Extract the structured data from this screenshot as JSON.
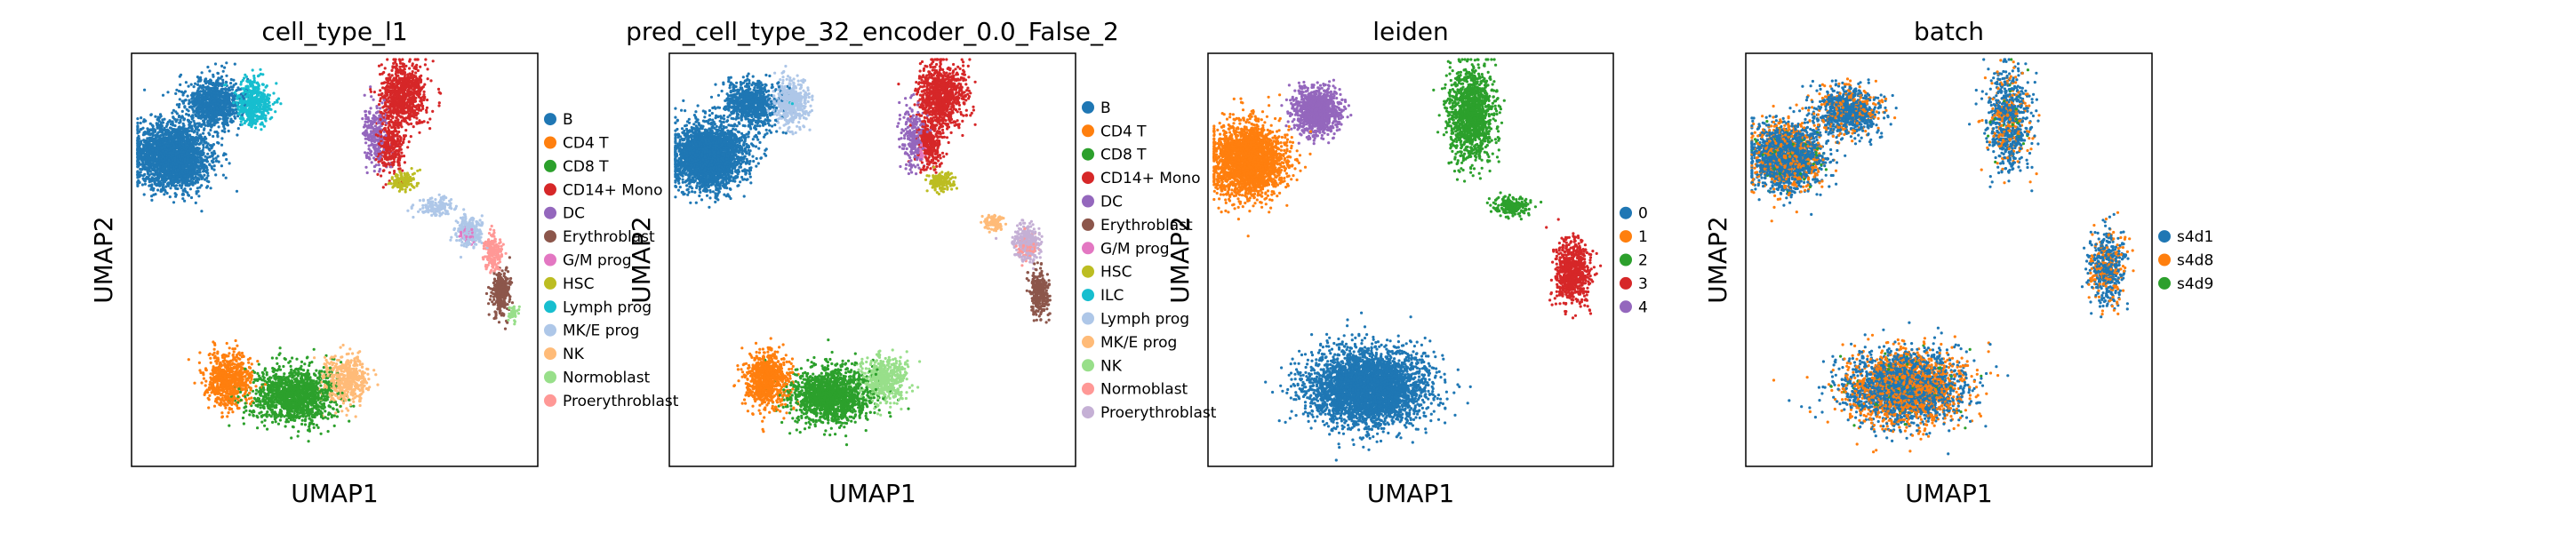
{
  "chart_data": [
    {
      "type": "scatter",
      "title": "cell_type_l1",
      "xlabel": "UMAP1",
      "ylabel": "UMAP2",
      "legend": "right",
      "series": [
        {
          "name": "B",
          "color": "#1f77b4",
          "clusters": [
            [
              0.1,
              0.25,
              0.08,
              0.07,
              2600
            ],
            [
              0.2,
              0.12,
              0.06,
              0.05,
              900
            ]
          ]
        },
        {
          "name": "CD4 T",
          "color": "#ff7f0e",
          "clusters": [
            [
              0.24,
              0.79,
              0.05,
              0.06,
              700
            ]
          ]
        },
        {
          "name": "CD8 T",
          "color": "#2ca02c",
          "clusters": [
            [
              0.4,
              0.83,
              0.09,
              0.06,
              1400
            ]
          ]
        },
        {
          "name": "CD14+ Mono",
          "color": "#d62728",
          "clusters": [
            [
              0.67,
              0.1,
              0.05,
              0.07,
              800
            ],
            [
              0.64,
              0.22,
              0.03,
              0.06,
              300
            ]
          ]
        },
        {
          "name": "DC",
          "color": "#9467bd",
          "clusters": [
            [
              0.6,
              0.2,
              0.025,
              0.07,
              250
            ]
          ]
        },
        {
          "name": "Erythroblast",
          "color": "#8c564b",
          "clusters": [
            [
              0.91,
              0.58,
              0.02,
              0.05,
              300
            ]
          ]
        },
        {
          "name": "G/M prog",
          "color": "#e377c2",
          "clusters": [
            [
              0.83,
              0.44,
              0.015,
              0.015,
              60
            ]
          ]
        },
        {
          "name": "HSC",
          "color": "#bcbd22",
          "clusters": [
            [
              0.67,
              0.31,
              0.03,
              0.02,
              150
            ]
          ]
        },
        {
          "name": "Lymph prog",
          "color": "#17becf",
          "clusters": [
            [
              0.3,
              0.12,
              0.04,
              0.05,
              500
            ]
          ]
        },
        {
          "name": "MK/E prog",
          "color": "#aec7e8",
          "clusters": [
            [
              0.83,
              0.43,
              0.03,
              0.03,
              250
            ],
            [
              0.75,
              0.37,
              0.04,
              0.02,
              150
            ]
          ]
        },
        {
          "name": "NK",
          "color": "#ffbb78",
          "clusters": [
            [
              0.53,
              0.79,
              0.05,
              0.05,
              500
            ]
          ]
        },
        {
          "name": "Normoblast",
          "color": "#98df8a",
          "clusters": [
            [
              0.94,
              0.63,
              0.012,
              0.02,
              40
            ]
          ]
        },
        {
          "name": "Proerythroblast",
          "color": "#ff9896",
          "clusters": [
            [
              0.89,
              0.48,
              0.02,
              0.04,
              200
            ]
          ]
        }
      ]
    },
    {
      "type": "scatter",
      "title": "pred_cell_type_32_encoder_0.0_False_2",
      "xlabel": "UMAP1",
      "ylabel": "UMAP2",
      "legend": "right",
      "series": [
        {
          "name": "B",
          "color": "#1f77b4",
          "clusters": [
            [
              0.1,
              0.25,
              0.08,
              0.07,
              2600
            ],
            [
              0.2,
              0.12,
              0.06,
              0.05,
              800
            ]
          ]
        },
        {
          "name": "CD4 T",
          "color": "#ff7f0e",
          "clusters": [
            [
              0.24,
              0.79,
              0.05,
              0.06,
              800
            ]
          ]
        },
        {
          "name": "CD8 T",
          "color": "#2ca02c",
          "clusters": [
            [
              0.4,
              0.83,
              0.09,
              0.06,
              1500
            ]
          ]
        },
        {
          "name": "CD14+ Mono",
          "color": "#d62728",
          "clusters": [
            [
              0.67,
              0.1,
              0.05,
              0.07,
              900
            ],
            [
              0.64,
              0.22,
              0.03,
              0.06,
              300
            ]
          ]
        },
        {
          "name": "DC",
          "color": "#9467bd",
          "clusters": [
            [
              0.6,
              0.2,
              0.025,
              0.07,
              250
            ]
          ]
        },
        {
          "name": "Erythroblast",
          "color": "#8c564b",
          "clusters": [
            [
              0.91,
              0.58,
              0.02,
              0.05,
              300
            ]
          ]
        },
        {
          "name": "G/M prog",
          "color": "#e377c2",
          "clusters": [
            [
              0.62,
              0.24,
              0.01,
              0.02,
              30
            ]
          ]
        },
        {
          "name": "HSC",
          "color": "#bcbd22",
          "clusters": [
            [
              0.67,
              0.31,
              0.03,
              0.02,
              150
            ]
          ]
        },
        {
          "name": "ILC",
          "color": "#17becf",
          "clusters": [
            [
              0.3,
              0.12,
              0.01,
              0.01,
              10
            ]
          ]
        },
        {
          "name": "Lymph prog",
          "color": "#aec7e8",
          "clusters": [
            [
              0.3,
              0.12,
              0.04,
              0.05,
              500
            ]
          ]
        },
        {
          "name": "MK/E prog",
          "color": "#ffbb78",
          "clusters": [
            [
              0.8,
              0.41,
              0.02,
              0.02,
              100
            ]
          ]
        },
        {
          "name": "NK",
          "color": "#98df8a",
          "clusters": [
            [
              0.53,
              0.79,
              0.05,
              0.05,
              500
            ]
          ]
        },
        {
          "name": "Normoblast",
          "color": "#ff9896",
          "clusters": [
            [
              0.88,
              0.47,
              0.02,
              0.03,
              100
            ]
          ]
        },
        {
          "name": "Proerythroblast",
          "color": "#c5b0d5",
          "clusters": [
            [
              0.88,
              0.46,
              0.03,
              0.04,
              300
            ]
          ]
        }
      ]
    },
    {
      "type": "scatter",
      "title": "leiden",
      "xlabel": "UMAP1",
      "ylabel": "UMAP2",
      "legend": "right",
      "series": [
        {
          "name": "0",
          "color": "#1f77b4",
          "clusters": [
            [
              0.39,
              0.81,
              0.13,
              0.08,
              3800
            ]
          ]
        },
        {
          "name": "1",
          "color": "#ff7f0e",
          "clusters": [
            [
              0.1,
              0.26,
              0.08,
              0.08,
              2400
            ]
          ]
        },
        {
          "name": "2",
          "color": "#2ca02c",
          "clusters": [
            [
              0.65,
              0.15,
              0.05,
              0.1,
              1300
            ],
            [
              0.75,
              0.37,
              0.04,
              0.02,
              200
            ]
          ]
        },
        {
          "name": "3",
          "color": "#d62728",
          "clusters": [
            [
              0.9,
              0.53,
              0.04,
              0.07,
              700
            ]
          ]
        },
        {
          "name": "4",
          "color": "#9467bd",
          "clusters": [
            [
              0.27,
              0.14,
              0.05,
              0.05,
              1000
            ]
          ]
        }
      ]
    },
    {
      "type": "scatter",
      "title": "batch",
      "xlabel": "UMAP1",
      "ylabel": "UMAP2",
      "legend": "right",
      "series": [
        {
          "name": "s4d1",
          "color": "#1f77b4",
          "clusters": [
            [
              0.1,
              0.25,
              0.08,
              0.07,
              1500
            ],
            [
              0.25,
              0.14,
              0.07,
              0.05,
              700
            ],
            [
              0.39,
              0.81,
              0.13,
              0.08,
              1800
            ],
            [
              0.65,
              0.16,
              0.05,
              0.11,
              600
            ],
            [
              0.89,
              0.52,
              0.04,
              0.08,
              400
            ]
          ]
        },
        {
          "name": "s4d8",
          "color": "#ff7f0e",
          "clusters": [
            [
              0.1,
              0.25,
              0.08,
              0.07,
              700
            ],
            [
              0.25,
              0.14,
              0.07,
              0.05,
              250
            ],
            [
              0.39,
              0.81,
              0.13,
              0.08,
              1400
            ],
            [
              0.65,
              0.16,
              0.05,
              0.11,
              200
            ],
            [
              0.89,
              0.52,
              0.04,
              0.08,
              200
            ]
          ]
        },
        {
          "name": "s4d9",
          "color": "#2ca02c",
          "clusters": [
            [
              0.1,
              0.25,
              0.08,
              0.07,
              80
            ],
            [
              0.39,
              0.81,
              0.13,
              0.08,
              80
            ],
            [
              0.65,
              0.16,
              0.05,
              0.11,
              30
            ]
          ]
        }
      ]
    }
  ]
}
